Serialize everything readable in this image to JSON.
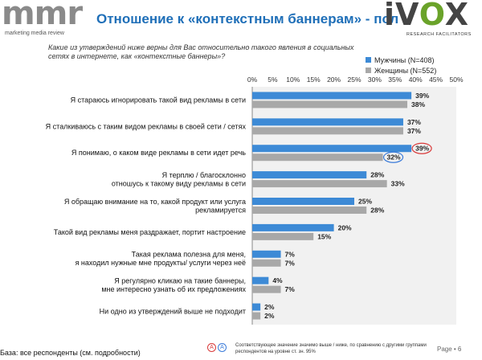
{
  "header": {
    "brand_left": "mmr",
    "brand_left_sub": "marketing media review",
    "title": "Отношение к «контекстным баннерам» - пол",
    "brand_right_i": "i",
    "brand_right_v": "V",
    "brand_right_o": "O",
    "brand_right_x": "X",
    "brand_right_sub": "RESEARCH FACILITATORS"
  },
  "question": "Какие из утверждений ниже верны для Вас относительно такого явления в социальных сетях в интернете, как «контекстные баннеры»?",
  "colors": {
    "men": "#3d8ad6",
    "women": "#a8a8a8",
    "plot_bg": "#f1f1f1",
    "higher_mark": "#d93a3a",
    "lower_mark": "#3a7bd9"
  },
  "chart_data": {
    "type": "bar",
    "orientation": "horizontal",
    "x_ticks": [
      "0%",
      "5%",
      "10%",
      "15%",
      "20%",
      "25%",
      "30%",
      "35%",
      "40%",
      "45%",
      "50%"
    ],
    "xlim": [
      0,
      50
    ],
    "legend_position": "top-right",
    "categories": [
      [
        "Я стараюсь игнорировать такой вид рекламы в сети"
      ],
      [
        "Я сталкиваюсь с таким видом рекламы в своей сети / сетях"
      ],
      [
        "Я понимаю, о каком виде рекламы в сети идет речь"
      ],
      [
        "Я терплю / благосклонно",
        "отношусь к такому виду рекламы в сети"
      ],
      [
        "Я обращаю внимание на то, какой продукт или услуга",
        "рекламируется"
      ],
      [
        "Такой вид рекламы меня раздражает, портит настроение"
      ],
      [
        "Такая реклама полезна для меня,",
        "я находил нужные мне продукты/ услуги через неё"
      ],
      [
        "Я регулярно кликаю на такие баннеры,",
        "мне интересно узнать об их предложениях"
      ],
      [
        "Ни одно из утверждений выше не подходит"
      ]
    ],
    "series": [
      {
        "name": "Мужчины (N=408)",
        "values": [
          39,
          37,
          39,
          28,
          25,
          20,
          7,
          4,
          2
        ],
        "labels": [
          "39%",
          "37%",
          "39%",
          "28%",
          "25%",
          "20%",
          "7%",
          "4%",
          "2%"
        ]
      },
      {
        "name": "Женщины (N=552)",
        "values": [
          38,
          37,
          32,
          33,
          28,
          15,
          7,
          7,
          2
        ],
        "labels": [
          "38%",
          "37%",
          "32%",
          "33%",
          "28%",
          "15%",
          "7%",
          "7%",
          "2%"
        ]
      }
    ],
    "highlights": [
      {
        "category_index": 2,
        "series_index": 0,
        "kind": "higher"
      },
      {
        "category_index": 2,
        "series_index": 1,
        "kind": "lower"
      }
    ]
  },
  "footer": {
    "base": "База: все респонденты (см. подробности)",
    "sig_higher": "A",
    "sig_lower": "A",
    "sig_text": "Соответствующее значение значимо выше / ниже, по сравнению с другими группами респондентов на уровне ст. зн. 95%",
    "page": "Page • 6"
  }
}
